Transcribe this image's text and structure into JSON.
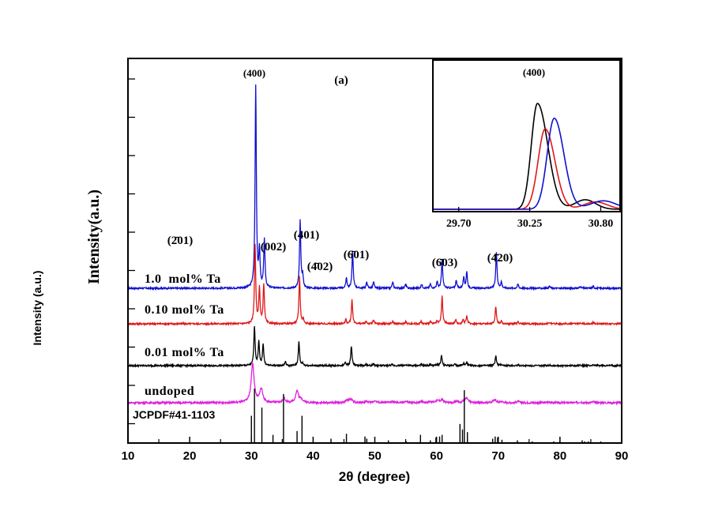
{
  "chart_data": [
    {
      "type": "line",
      "title": "(a)",
      "xlabel": "2θ (degree)",
      "ylabel": "Intensity(a.u.)",
      "outer_ylabel": "Intensity (a.u.)",
      "xlim": [
        10,
        90
      ],
      "xticks": [
        10,
        20,
        30,
        40,
        50,
        60,
        70,
        80,
        90
      ],
      "xtick_labels": [
        "10",
        "20",
        "30",
        "40",
        "50",
        "60",
        "70",
        "80",
        "90"
      ],
      "series": [
        {
          "name": "1.0  mol% Ta",
          "color": "#1010d0",
          "peaks": [
            [
              30.7,
              100
            ],
            [
              31.3,
              18
            ],
            [
              32.1,
              24
            ],
            [
              37.9,
              33
            ],
            [
              38.3,
              6
            ],
            [
              45.4,
              5
            ],
            [
              46.4,
              18
            ],
            [
              48.7,
              3
            ],
            [
              49.8,
              3
            ],
            [
              52.9,
              3
            ],
            [
              55.0,
              2
            ],
            [
              57.6,
              2
            ],
            [
              59.0,
              2
            ],
            [
              60.1,
              3
            ],
            [
              60.9,
              14
            ],
            [
              63.2,
              4
            ],
            [
              64.4,
              5
            ],
            [
              64.9,
              8
            ],
            [
              69.7,
              18
            ],
            [
              70.5,
              3
            ],
            [
              73.2,
              2
            ],
            [
              78.3,
              1
            ],
            [
              83.3,
              1
            ],
            [
              85.4,
              1
            ]
          ]
        },
        {
          "name": "0.10 mol% Ta",
          "color": "#e01818",
          "peaks": [
            [
              30.6,
              100
            ],
            [
              31.3,
              45
            ],
            [
              32.0,
              50
            ],
            [
              37.8,
              60
            ],
            [
              38.4,
              6
            ],
            [
              45.3,
              5
            ],
            [
              46.3,
              30
            ],
            [
              48.6,
              3
            ],
            [
              49.8,
              5
            ],
            [
              52.9,
              3
            ],
            [
              55.0,
              3
            ],
            [
              57.5,
              3
            ],
            [
              59.0,
              3
            ],
            [
              60.1,
              3
            ],
            [
              60.9,
              35
            ],
            [
              63.1,
              5
            ],
            [
              64.3,
              6
            ],
            [
              64.9,
              10
            ],
            [
              69.6,
              22
            ],
            [
              70.5,
              3
            ],
            [
              73.2,
              3
            ],
            [
              78.3,
              2
            ],
            [
              83.3,
              2
            ],
            [
              85.4,
              2
            ]
          ]
        },
        {
          "name": "0.01 mol% Ta",
          "color": "#000000",
          "peaks": [
            [
              30.5,
              100
            ],
            [
              31.2,
              60
            ],
            [
              31.9,
              55
            ],
            [
              35.5,
              10
            ],
            [
              37.7,
              60
            ],
            [
              38.3,
              6
            ],
            [
              45.2,
              10
            ],
            [
              46.2,
              50
            ],
            [
              48.6,
              3
            ],
            [
              49.8,
              4
            ],
            [
              52.8,
              3
            ],
            [
              55.0,
              3
            ],
            [
              57.5,
              3
            ],
            [
              59.0,
              3
            ],
            [
              60.1,
              3
            ],
            [
              60.8,
              25
            ],
            [
              63.0,
              5
            ],
            [
              64.4,
              5
            ],
            [
              64.9,
              8
            ],
            [
              69.6,
              25
            ],
            [
              70.5,
              3
            ],
            [
              73.2,
              2
            ],
            [
              78.3,
              2
            ],
            [
              83.3,
              2
            ],
            [
              85.4,
              2
            ]
          ]
        },
        {
          "name": "undoped",
          "color": "#dd22dd",
          "peaks": [
            [
              30.2,
              100
            ],
            [
              31.6,
              35
            ],
            [
              35.3,
              10
            ],
            [
              37.4,
              30
            ],
            [
              38.1,
              8
            ],
            [
              45.5,
              5
            ],
            [
              46.1,
              10
            ],
            [
              48.6,
              3
            ],
            [
              50.0,
              5
            ],
            [
              52.8,
              3
            ],
            [
              55.0,
              3
            ],
            [
              57.5,
              4
            ],
            [
              59.0,
              3
            ],
            [
              60.1,
              5
            ],
            [
              60.9,
              8
            ],
            [
              63.2,
              4
            ],
            [
              64.5,
              4
            ],
            [
              64.9,
              10
            ],
            [
              69.4,
              8
            ],
            [
              70.5,
              3
            ],
            [
              73.2,
              3
            ],
            [
              78.3,
              2
            ],
            [
              83.3,
              2
            ],
            [
              85.4,
              2
            ]
          ]
        }
      ],
      "reference": {
        "name": "JCPDF#41-1103",
        "lines": [
          [
            30.0,
            50
          ],
          [
            30.5,
            100
          ],
          [
            31.7,
            65
          ],
          [
            33.5,
            15
          ],
          [
            35.2,
            90
          ],
          [
            37.4,
            22
          ],
          [
            38.2,
            50
          ],
          [
            42.9,
            8
          ],
          [
            45.4,
            17
          ],
          [
            48.4,
            12
          ],
          [
            48.7,
            8
          ],
          [
            52.2,
            5
          ],
          [
            55.1,
            3
          ],
          [
            57.4,
            15
          ],
          [
            59.0,
            5
          ],
          [
            59.9,
            10
          ],
          [
            60.5,
            12
          ],
          [
            60.9,
            15
          ],
          [
            63.8,
            35
          ],
          [
            64.2,
            25
          ],
          [
            64.5,
            97
          ],
          [
            65.0,
            20
          ],
          [
            69.1,
            8
          ],
          [
            69.5,
            12
          ],
          [
            69.9,
            10
          ],
          [
            70.6,
            6
          ],
          [
            73.1,
            5
          ],
          [
            75.5,
            3
          ],
          [
            79.0,
            3
          ],
          [
            80.0,
            3
          ],
          [
            83.6,
            5
          ],
          [
            84.0,
            3
          ],
          [
            84.6,
            3
          ],
          [
            86.6,
            3
          ]
        ]
      },
      "peak_labels": [
        {
          "hkl": "(400)"
        },
        {
          "hkl": "(2̄01)"
        },
        {
          "hkl": "(002)"
        },
        {
          "hkl": "(401)"
        },
        {
          "hkl": "(4̄02)"
        },
        {
          "hkl": "(6̄01)"
        },
        {
          "hkl": "(6̄03)"
        },
        {
          "hkl": "(4̄20)"
        }
      ]
    },
    {
      "type": "line",
      "title": "(400)",
      "xlim": [
        29.5,
        30.95
      ],
      "xticks": [
        29.7,
        30.25,
        30.8
      ],
      "xtick_labels": [
        "29.70",
        "30.25",
        "30.80"
      ],
      "series": [
        {
          "name": "black",
          "color": "#000000",
          "peaks": [
            [
              30.31,
              100,
              0.048,
              0.08
            ],
            [
              30.68,
              9,
              0.08,
              0.08
            ]
          ]
        },
        {
          "name": "red",
          "color": "#e01818",
          "peaks": [
            [
              30.37,
              76,
              0.055,
              0.075
            ],
            [
              30.76,
              7,
              0.09,
              0.09
            ]
          ]
        },
        {
          "name": "blue",
          "color": "#1010d0",
          "peaks": [
            [
              30.44,
              86,
              0.055,
              0.075
            ],
            [
              30.82,
              8,
              0.1,
              0.1
            ]
          ]
        }
      ]
    }
  ]
}
